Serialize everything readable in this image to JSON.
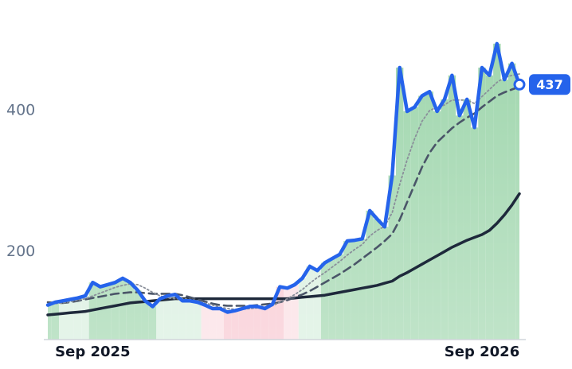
{
  "chart_data": {
    "type": "line",
    "categories": [
      null,
      null,
      null,
      null,
      null,
      null,
      "Sep 2025",
      null,
      null,
      null,
      null,
      null,
      null,
      null,
      null,
      null,
      null,
      null,
      null,
      null,
      null,
      null,
      null,
      null,
      null,
      null,
      null,
      null,
      null,
      null,
      null,
      null,
      null,
      null,
      null,
      null,
      null,
      null,
      null,
      null,
      null,
      null,
      null,
      null,
      null,
      null,
      null,
      null,
      null,
      null,
      null,
      null,
      null,
      null,
      null,
      null,
      null,
      null,
      "Sep 2026",
      null,
      null,
      null,
      null,
      null
    ],
    "series": [
      {
        "color": "#2563eb",
        "values": [
          124,
          128,
          130,
          132,
          134,
          137,
          156,
          150,
          153,
          156,
          162,
          156,
          145,
          130,
          122,
          133,
          137,
          139,
          130,
          130,
          128,
          124,
          119,
          119,
          114,
          116,
          119,
          122,
          122,
          119,
          125,
          150,
          148,
          153,
          162,
          179,
          173,
          184,
          190,
          196,
          215,
          216,
          218,
          258,
          246,
          235,
          308,
          461,
          399,
          405,
          421,
          427,
          399,
          416,
          450,
          393,
          416,
          376,
          461,
          450,
          495,
          444,
          467,
          437
        ]
      },
      {
        "color": "#8a8f9a",
        "values": [
          125,
          126,
          127,
          129,
          131,
          133,
          137,
          141,
          145,
          149,
          152,
          154,
          153,
          148,
          142,
          137,
          134,
          133,
          133,
          132,
          130,
          127,
          124,
          121,
          119,
          118,
          118,
          119,
          120,
          121,
          123,
          128,
          133,
          139,
          146,
          155,
          163,
          170,
          178,
          186,
          195,
          203,
          210,
          222,
          230,
          236,
          255,
          295,
          330,
          360,
          385,
          400,
          405,
          408,
          415,
          415,
          415,
          410,
          420,
          430,
          440,
          447,
          450,
          452
        ]
      },
      {
        "color": "#4a5568",
        "values": [
          128,
          127,
          127,
          128,
          130,
          132,
          134,
          136,
          138,
          140,
          141,
          142,
          142,
          141,
          140,
          140,
          140,
          140,
          138,
          135,
          132,
          129,
          126,
          124,
          123,
          123,
          123,
          123,
          124,
          125,
          126,
          128,
          131,
          135,
          139,
          144,
          150,
          156,
          162,
          168,
          175,
          182,
          190,
          198,
          206,
          215,
          225,
          245,
          270,
          295,
          320,
          340,
          355,
          365,
          375,
          383,
          390,
          396,
          405,
          413,
          421,
          426,
          430,
          434
        ]
      },
      {
        "color": "#1e293b",
        "values": [
          110,
          111,
          112,
          113,
          114,
          115,
          117,
          119,
          121,
          123,
          125,
          127,
          128,
          129,
          130,
          131,
          132,
          133,
          133,
          133,
          133,
          133,
          133,
          133,
          133,
          133,
          133,
          133,
          133,
          133,
          133,
          133,
          133,
          134,
          135,
          136,
          137,
          138,
          140,
          142,
          144,
          146,
          148,
          150,
          152,
          155,
          158,
          165,
          170,
          176,
          182,
          188,
          194,
          200,
          206,
          211,
          216,
          220,
          224,
          230,
          240,
          252,
          266,
          282
        ]
      }
    ],
    "band_colors": [
      "#9dd5ab",
      "#9dd5ab",
      "#d6eedd",
      "#d6eedd",
      "#d6eedd",
      "#d6eedd",
      "#9dd5ab",
      "#9dd5ab",
      "#9dd5ab",
      "#9dd5ab",
      "#9dd5ab",
      "#9dd5ab",
      "#9dd5ab",
      "#9dd5ab",
      "#9dd5ab",
      "#d6eedd",
      "#d6eedd",
      "#d6eedd",
      "#d6eedd",
      "#d6eedd",
      "#d6eedd",
      "#fbdde2",
      "#fbdde2",
      "#fbdde2",
      "#f7c5cf",
      "#f7c5cf",
      "#f7c5cf",
      "#f7c5cf",
      "#f7c5cf",
      "#f7c5cf",
      "#f7c5cf",
      "#f7c5cf",
      "#fbdde2",
      "#fbdde2",
      "#d6eedd",
      "#d6eedd",
      "#d6eedd",
      "#9dd5ab",
      "#9dd5ab",
      "#9dd5ab",
      "#9dd5ab",
      "#9dd5ab",
      "#9dd5ab",
      "#9dd5ab",
      "#9dd5ab",
      "#9dd5ab",
      "#9dd5ab",
      "#9dd5ab",
      "#9dd5ab",
      "#9dd5ab",
      "#9dd5ab",
      "#9dd5ab",
      "#9dd5ab",
      "#9dd5ab",
      "#9dd5ab",
      "#9dd5ab",
      "#9dd5ab",
      "#9dd5ab",
      "#9dd5ab",
      "#9dd5ab",
      "#9dd5ab",
      "#9dd5ab",
      "#9dd5ab",
      "#9dd5ab"
    ],
    "ylim": [
      75,
      557
    ],
    "yticks": [
      200,
      400
    ],
    "grid": false
  }
}
